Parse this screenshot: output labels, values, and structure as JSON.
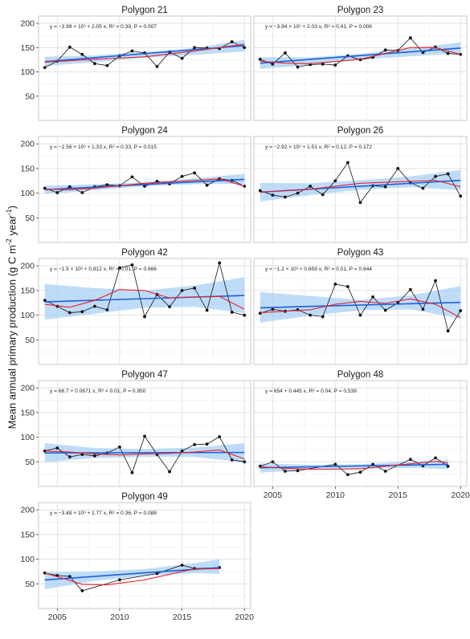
{
  "ylabel_text": "Mean annual primary production (g C m",
  "ylabel_sup": "-2",
  "ylabel_mid": " year",
  "ylabel_sup2": "-1",
  "ylabel_end": ")",
  "chart_data": {
    "type": "line",
    "layout": "faceted",
    "xlim": [
      2003.5,
      2020.5
    ],
    "ylim": [
      0,
      215
    ],
    "x_ticks": [
      "2005",
      "2010",
      "2015",
      "2020"
    ],
    "y_ticks": [
      "50",
      "100",
      "150",
      "200"
    ],
    "series_legend": [
      "observed (black line with points)",
      "linear fit (blue) with confidence band",
      "loess smooth (red)"
    ],
    "panels": [
      {
        "title": "Polygon 21",
        "equation": "y = −3.99 × 10³ + 2.05 x, R² = 0.39, P = 0.007",
        "x": [
          2004,
          2005,
          2006,
          2007,
          2008,
          2009,
          2010,
          2011,
          2012,
          2013,
          2014,
          2015,
          2016,
          2017,
          2018,
          2019,
          2020
        ],
        "y": [
          109,
          122,
          151,
          136,
          117,
          113,
          133,
          143,
          139,
          111,
          141,
          128,
          150,
          149,
          148,
          162,
          150
        ],
        "fit": [
          2004,
          121,
          2020,
          154
        ],
        "band": [
          [
            2004,
            112,
            131
          ],
          [
            2008,
            120,
            134
          ],
          [
            2012,
            129,
            141
          ],
          [
            2016,
            135,
            149
          ],
          [
            2020,
            142,
            166
          ]
        ],
        "smooth": [
          [
            2004,
            120
          ],
          [
            2008,
            126
          ],
          [
            2012,
            131
          ],
          [
            2016,
            143
          ],
          [
            2018,
            150
          ],
          [
            2020,
            157
          ]
        ]
      },
      {
        "title": "Polygon 23",
        "equation": "y = −3.94 × 10³ + 2.03 x, R² = 0.41, P = 0.006",
        "x": [
          2004,
          2005,
          2006,
          2007,
          2008,
          2009,
          2010,
          2011,
          2012,
          2013,
          2014,
          2015,
          2016,
          2017,
          2018,
          2019,
          2020
        ],
        "y": [
          126,
          116,
          139,
          110,
          115,
          116,
          114,
          133,
          125,
          130,
          145,
          144,
          170,
          140,
          151,
          138,
          136
        ],
        "fit": [
          2004,
          118,
          2020,
          149
        ],
        "band": [
          [
            2004,
            106,
            130
          ],
          [
            2008,
            114,
            130
          ],
          [
            2012,
            125,
            137
          ],
          [
            2016,
            132,
            148
          ],
          [
            2020,
            138,
            161
          ]
        ],
        "smooth": [
          [
            2004,
            122
          ],
          [
            2006,
            118
          ],
          [
            2008,
            117
          ],
          [
            2012,
            126
          ],
          [
            2016,
            150
          ],
          [
            2018,
            150
          ],
          [
            2020,
            136
          ]
        ]
      },
      {
        "title": "Polygon 24",
        "equation": "y = −2.56 × 10³ + 1.33 x, R² = 0.33, P = 0.015",
        "x": [
          2004,
          2005,
          2006,
          2007,
          2008,
          2009,
          2010,
          2011,
          2012,
          2013,
          2014,
          2015,
          2016,
          2017,
          2018,
          2019,
          2020
        ],
        "y": [
          110,
          101,
          113,
          101,
          113,
          117,
          115,
          133,
          114,
          124,
          119,
          134,
          141,
          116,
          129,
          126,
          114
        ],
        "fit": [
          2004,
          107,
          2020,
          128
        ],
        "band": [
          [
            2004,
            98,
            115
          ],
          [
            2008,
            106,
            118
          ],
          [
            2012,
            114,
            122
          ],
          [
            2016,
            118,
            130
          ],
          [
            2020,
            119,
            139
          ]
        ],
        "smooth": [
          [
            2004,
            108
          ],
          [
            2006,
            107
          ],
          [
            2008,
            110
          ],
          [
            2012,
            120
          ],
          [
            2016,
            126
          ],
          [
            2018,
            129
          ],
          [
            2020,
            114
          ]
        ]
      },
      {
        "title": "Polygon 26",
        "equation": "y = −2.92 × 10³ + 1.51 x, R² = 0.12, P = 0.172",
        "x": [
          2004,
          2005,
          2006,
          2007,
          2008,
          2009,
          2010,
          2011,
          2012,
          2013,
          2014,
          2015,
          2016,
          2017,
          2018,
          2019,
          2020
        ],
        "y": [
          105,
          96,
          92,
          100,
          114,
          97,
          125,
          162,
          81,
          115,
          113,
          150,
          121,
          110,
          134,
          139,
          94
        ],
        "fit": [
          2004,
          102,
          2020,
          126
        ],
        "band": [
          [
            2004,
            83,
            121
          ],
          [
            2008,
            96,
            120
          ],
          [
            2012,
            107,
            126
          ],
          [
            2016,
            112,
            134
          ],
          [
            2020,
            106,
            147
          ]
        ],
        "smooth": [
          [
            2004,
            102
          ],
          [
            2008,
            108
          ],
          [
            2012,
            120
          ],
          [
            2016,
            124
          ],
          [
            2018,
            126
          ],
          [
            2020,
            113
          ]
        ]
      },
      {
        "title": "Polygon 42",
        "equation": "y = −1.5 × 10³ + 0.812 x, R² = 0.01, P = 0.666",
        "x": [
          2004,
          2005,
          2006,
          2007,
          2008,
          2009,
          2010,
          2011,
          2012,
          2013,
          2014,
          2015,
          2016,
          2017,
          2018,
          2019,
          2020
        ],
        "y": [
          130,
          118,
          105,
          107,
          118,
          111,
          196,
          202,
          97,
          142,
          117,
          150,
          155,
          110,
          206,
          106,
          100
        ],
        "fit": [
          2004,
          127,
          2020,
          140
        ],
        "band": [
          [
            2004,
            91,
            163
          ],
          [
            2008,
            103,
            155
          ],
          [
            2012,
            115,
            150
          ],
          [
            2016,
            117,
            160
          ],
          [
            2020,
            104,
            177
          ]
        ],
        "smooth": [
          [
            2004,
            122
          ],
          [
            2006,
            116
          ],
          [
            2008,
            130
          ],
          [
            2010,
            152
          ],
          [
            2012,
            150
          ],
          [
            2014,
            135
          ],
          [
            2016,
            137
          ],
          [
            2018,
            138
          ],
          [
            2020,
            112
          ]
        ]
      },
      {
        "title": "Polygon 43",
        "equation": "y = −1.2 × 10³ + 0.659 x, R² = 0.01, P = 0.644",
        "x": [
          2004,
          2005,
          2006,
          2007,
          2008,
          2009,
          2010,
          2011,
          2012,
          2013,
          2014,
          2015,
          2016,
          2017,
          2018,
          2019,
          2020
        ],
        "y": [
          104,
          112,
          108,
          111,
          100,
          97,
          163,
          158,
          100,
          137,
          110,
          125,
          152,
          112,
          170,
          68,
          109
        ],
        "fit": [
          2004,
          115,
          2020,
          126
        ],
        "band": [
          [
            2004,
            85,
            147
          ],
          [
            2008,
            99,
            139
          ],
          [
            2012,
            110,
            131
          ],
          [
            2016,
            112,
            140
          ],
          [
            2020,
            93,
            159
          ]
        ],
        "smooth": [
          [
            2004,
            105
          ],
          [
            2006,
            108
          ],
          [
            2008,
            111
          ],
          [
            2010,
            122
          ],
          [
            2012,
            128
          ],
          [
            2014,
            124
          ],
          [
            2016,
            133
          ],
          [
            2018,
            122
          ],
          [
            2020,
            95
          ]
        ]
      },
      {
        "title": "Polygon 47",
        "equation": "y = 68.7 + 0.0671 x, R² < 0.01, P = 0.950",
        "x": [
          2004,
          2005,
          2006,
          2007,
          2008,
          2009,
          2010,
          2011,
          2012,
          2013,
          2014,
          2015,
          2016,
          2017,
          2018,
          2019,
          2020
        ],
        "y": [
          72,
          78,
          60,
          65,
          62,
          68,
          80,
          28,
          102,
          65,
          30,
          72,
          85,
          86,
          101,
          54,
          50
        ],
        "fit": [
          2004,
          68,
          2020,
          69
        ],
        "band": [
          [
            2004,
            49,
            88
          ],
          [
            2008,
            58,
            78
          ],
          [
            2012,
            60,
            76
          ],
          [
            2016,
            60,
            79
          ],
          [
            2020,
            49,
            88
          ]
        ],
        "smooth": [
          [
            2004,
            72
          ],
          [
            2006,
            70
          ],
          [
            2008,
            66
          ],
          [
            2010,
            64
          ],
          [
            2012,
            66
          ],
          [
            2014,
            67
          ],
          [
            2016,
            70
          ],
          [
            2018,
            74
          ],
          [
            2020,
            56
          ]
        ]
      },
      {
        "title": "Polygon 48",
        "equation": "y = 654 + 0.445 x, R² = 0.04, P = 0.539",
        "x": [
          2004,
          2005,
          2006,
          2007,
          2010,
          2011,
          2012,
          2013,
          2014,
          2016,
          2017,
          2018,
          2019
        ],
        "y": [
          41,
          50,
          31,
          32,
          45,
          24,
          29,
          45,
          31,
          55,
          42,
          58,
          41
        ],
        "fit": [
          2004,
          38,
          2019,
          45
        ],
        "band": [
          [
            2004,
            28,
            47
          ],
          [
            2008,
            34,
            44
          ],
          [
            2012,
            36,
            45
          ],
          [
            2016,
            38,
            51
          ],
          [
            2019,
            35,
            54
          ]
        ],
        "smooth": [
          [
            2004,
            40
          ],
          [
            2006,
            37
          ],
          [
            2008,
            35
          ],
          [
            2010,
            35
          ],
          [
            2012,
            36
          ],
          [
            2014,
            41
          ],
          [
            2016,
            46
          ],
          [
            2018,
            51
          ],
          [
            2019,
            48
          ]
        ]
      },
      {
        "title": "Polygon 49",
        "equation": "y = −3.48 × 10³ + 1.77 x, R² = 0.36, P = 0.088",
        "x": [
          2004,
          2005,
          2006,
          2007,
          2010,
          2013,
          2015,
          2016,
          2018
        ],
        "y": [
          72,
          67,
          65,
          36,
          58,
          71,
          88,
          81,
          83
        ],
        "fit": [
          2004,
          58,
          2018,
          83
        ],
        "band": [
          [
            2004,
            39,
            74
          ],
          [
            2008,
            56,
            75
          ],
          [
            2012,
            66,
            80
          ],
          [
            2016,
            72,
            92
          ],
          [
            2018,
            70,
            100
          ]
        ],
        "smooth": [
          [
            2004,
            72
          ],
          [
            2006,
            57
          ],
          [
            2007,
            49
          ],
          [
            2009,
            48
          ],
          [
            2012,
            58
          ],
          [
            2015,
            75
          ],
          [
            2016,
            80
          ],
          [
            2018,
            81
          ]
        ]
      }
    ]
  }
}
